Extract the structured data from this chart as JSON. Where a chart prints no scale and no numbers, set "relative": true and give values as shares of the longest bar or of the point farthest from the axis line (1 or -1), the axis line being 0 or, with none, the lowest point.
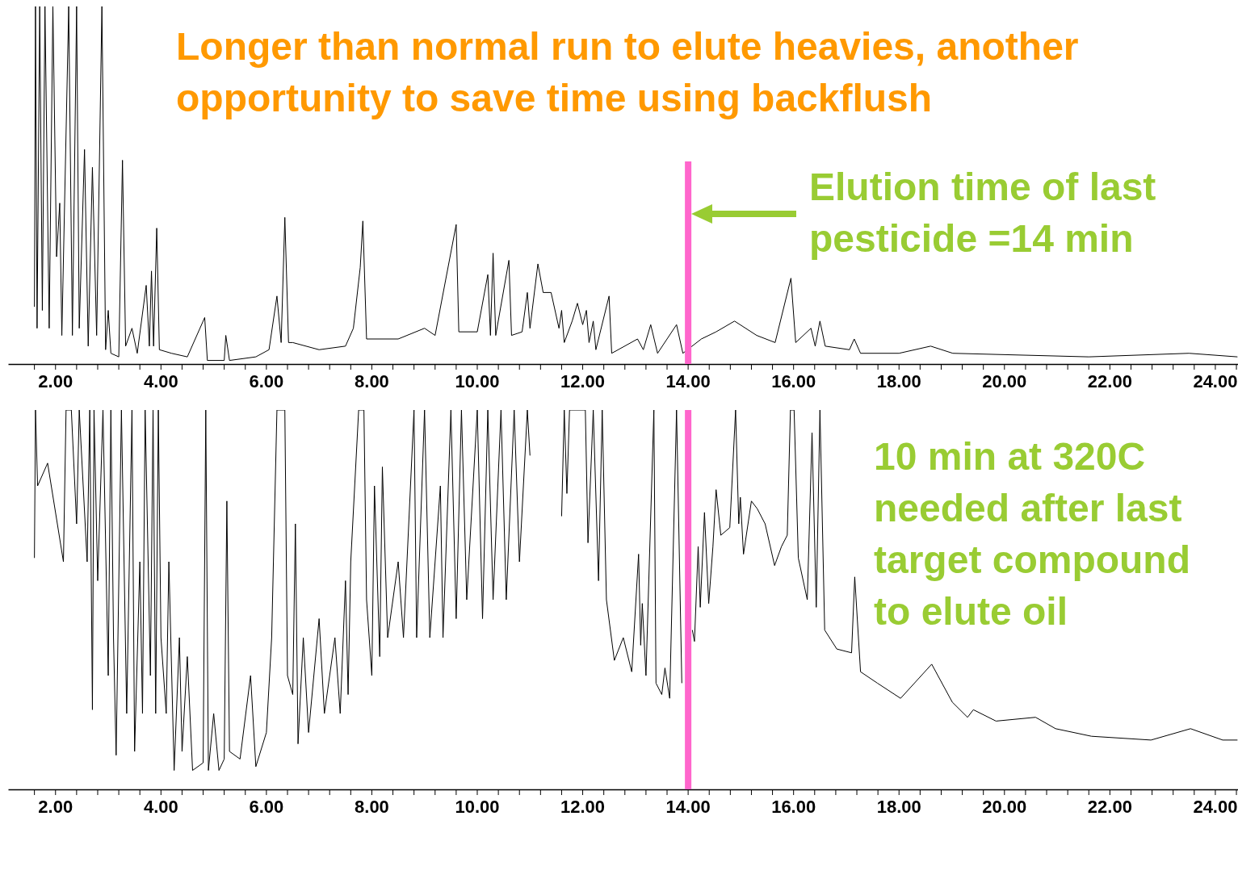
{
  "chart_data": [
    {
      "type": "line",
      "relative": true,
      "annotations": [
        "Longer than normal run to elute heavies, another\nopportunity to save time using backflush",
        "Elution time of last\npesticide =14 min"
      ],
      "xlim": [
        1.1,
        24.43
      ],
      "xticks": [
        {
          "value": 1.6,
          "label": null
        },
        {
          "value": 2,
          "label": "2.00"
        },
        {
          "value": 2.4,
          "label": null
        },
        {
          "value": 2.8,
          "label": null
        },
        {
          "value": 3.2,
          "label": null
        },
        {
          "value": 3.6,
          "label": null
        },
        {
          "value": 4,
          "label": "4.00"
        },
        {
          "value": 4.4,
          "label": null
        },
        {
          "value": 4.8,
          "label": null
        },
        {
          "value": 5.2,
          "label": null
        },
        {
          "value": 5.6,
          "label": null
        },
        {
          "value": 6,
          "label": "6.00"
        },
        {
          "value": 6.4,
          "label": null
        },
        {
          "value": 6.8,
          "label": null
        },
        {
          "value": 7.2,
          "label": null
        },
        {
          "value": 7.6,
          "label": null
        },
        {
          "value": 8,
          "label": "8.00"
        },
        {
          "value": 8.4,
          "label": null
        },
        {
          "value": 8.8,
          "label": null
        },
        {
          "value": 9.2,
          "label": null
        },
        {
          "value": 9.6,
          "label": null
        },
        {
          "value": 10,
          "label": "10.00"
        },
        {
          "value": 10.4,
          "label": null
        },
        {
          "value": 10.8,
          "label": null
        },
        {
          "value": 11.2,
          "label": null
        },
        {
          "value": 11.6,
          "label": null
        },
        {
          "value": 12,
          "label": "12.00"
        },
        {
          "value": 12.4,
          "label": null
        },
        {
          "value": 12.8,
          "label": null
        },
        {
          "value": 13.2,
          "label": null
        },
        {
          "value": 13.6,
          "label": null
        },
        {
          "value": 14,
          "label": "14.00"
        },
        {
          "value": 14.4,
          "label": null
        },
        {
          "value": 14.8,
          "label": null
        },
        {
          "value": 15.2,
          "label": null
        },
        {
          "value": 15.6,
          "label": null
        },
        {
          "value": 16,
          "label": "16.00"
        },
        {
          "value": 16.4,
          "label": null
        },
        {
          "value": 16.8,
          "label": null
        },
        {
          "value": 17.2,
          "label": null
        },
        {
          "value": 17.6,
          "label": null
        },
        {
          "value": 18,
          "label": "18.00"
        },
        {
          "value": 18.4,
          "label": null
        },
        {
          "value": 18.8,
          "label": null
        },
        {
          "value": 19.2,
          "label": null
        },
        {
          "value": 19.6,
          "label": null
        },
        {
          "value": 20,
          "label": "20.00"
        },
        {
          "value": 20.4,
          "label": null
        },
        {
          "value": 20.8,
          "label": null
        },
        {
          "value": 21.2,
          "label": null
        },
        {
          "value": 21.6,
          "label": null
        },
        {
          "value": 22,
          "label": "22.00"
        },
        {
          "value": 22.4,
          "label": null
        },
        {
          "value": 22.8,
          "label": null
        },
        {
          "value": 23.2,
          "label": null
        },
        {
          "value": 23.6,
          "label": null
        },
        {
          "value": 24,
          "label": "24.00"
        },
        {
          "value": 24.4,
          "label": null
        }
      ],
      "ref_lines": [
        {
          "axis": "x",
          "value": 14,
          "color": "#ff66cc"
        }
      ],
      "x": [
        1.6,
        1.62,
        1.65,
        1.7,
        1.75,
        1.8,
        1.88,
        1.95,
        2.02,
        2.08,
        2.12,
        2.25,
        2.32,
        2.4,
        2.45,
        2.55,
        2.62,
        2.7,
        2.78,
        2.88,
        2.95,
        3.0,
        3.05,
        3.2,
        3.27,
        3.33,
        3.45,
        3.55,
        3.72,
        3.78,
        3.82,
        3.86,
        3.92,
        3.97,
        4.2,
        4.5,
        4.83,
        4.88,
        5.2,
        5.23,
        5.3,
        5.8,
        6.05,
        6.2,
        6.28,
        6.35,
        6.42,
        6.5,
        7.0,
        7.5,
        7.65,
        7.78,
        7.83,
        7.9,
        8.5,
        9.0,
        9.2,
        9.6,
        9.65,
        10.0,
        10.2,
        10.25,
        10.3,
        10.35,
        10.6,
        10.65,
        10.85,
        10.95,
        11.0,
        11.15,
        11.25,
        11.4,
        11.55,
        11.6,
        11.65,
        11.8,
        11.9,
        12.0,
        12.07,
        12.12,
        12.2,
        12.25,
        12.5,
        12.55,
        13.04,
        13.15,
        13.29,
        13.42,
        13.78,
        13.9,
        14.25,
        14.53,
        14.88,
        15.3,
        15.65,
        15.95,
        16.04,
        16.33,
        16.41,
        16.5,
        16.6,
        17.06,
        17.15,
        17.27,
        18.0,
        18.6,
        19.02,
        21.6,
        23.5,
        24.42
      ],
      "series": [
        {
          "color": "#000000",
          "values": [
            0.16,
            1,
            0.1,
            1,
            0.15,
            1,
            0.1,
            1,
            0.3,
            0.45,
            0.08,
            1,
            0.08,
            1,
            0.1,
            0.6,
            0.05,
            0.55,
            0.08,
            1,
            0.04,
            0.15,
            0.03,
            0.02,
            0.57,
            0.05,
            0.1,
            0.03,
            0.22,
            0.05,
            0.26,
            0.05,
            0.38,
            0.04,
            0.03,
            0.02,
            0.13,
            0.01,
            0.01,
            0.08,
            0.01,
            0.02,
            0.04,
            0.19,
            0.06,
            0.41,
            0.06,
            0.06,
            0.04,
            0.05,
            0.1,
            0.27,
            0.4,
            0.07,
            0.07,
            0.1,
            0.08,
            0.39,
            0.09,
            0.09,
            0.25,
            0.08,
            0.31,
            0.08,
            0.29,
            0.08,
            0.09,
            0.2,
            0.1,
            0.28,
            0.2,
            0.2,
            0.1,
            0.15,
            0.06,
            0.12,
            0.17,
            0.11,
            0.15,
            0.06,
            0.12,
            0.04,
            0.19,
            0.03,
            0.07,
            0.04,
            0.11,
            0.03,
            0.11,
            0.03,
            0.07,
            0.09,
            0.12,
            0.08,
            0.06,
            0.24,
            0.06,
            0.1,
            0.05,
            0.12,
            0.05,
            0.04,
            0.07,
            0.03,
            0.03,
            0.05,
            0.03,
            0.02,
            0.03,
            0.02
          ]
        }
      ]
    },
    {
      "type": "line",
      "relative": true,
      "annotations": [
        "10 min at 320C\nneeded after last\ntarget compound\nto elute oil"
      ],
      "xlim": [
        1.1,
        24.43
      ],
      "xticks": [
        {
          "value": 1.6,
          "label": null
        },
        {
          "value": 2,
          "label": "2.00"
        },
        {
          "value": 2.4,
          "label": null
        },
        {
          "value": 2.8,
          "label": null
        },
        {
          "value": 3.2,
          "label": null
        },
        {
          "value": 3.6,
          "label": null
        },
        {
          "value": 4,
          "label": "4.00"
        },
        {
          "value": 4.4,
          "label": null
        },
        {
          "value": 4.8,
          "label": null
        },
        {
          "value": 5.2,
          "label": null
        },
        {
          "value": 5.6,
          "label": null
        },
        {
          "value": 6,
          "label": "6.00"
        },
        {
          "value": 6.4,
          "label": null
        },
        {
          "value": 6.8,
          "label": null
        },
        {
          "value": 7.2,
          "label": null
        },
        {
          "value": 7.6,
          "label": null
        },
        {
          "value": 8,
          "label": "8.00"
        },
        {
          "value": 8.4,
          "label": null
        },
        {
          "value": 8.8,
          "label": null
        },
        {
          "value": 9.2,
          "label": null
        },
        {
          "value": 9.6,
          "label": null
        },
        {
          "value": 10,
          "label": "10.00"
        },
        {
          "value": 10.4,
          "label": null
        },
        {
          "value": 10.8,
          "label": null
        },
        {
          "value": 11.2,
          "label": null
        },
        {
          "value": 11.6,
          "label": null
        },
        {
          "value": 12,
          "label": "12.00"
        },
        {
          "value": 12.4,
          "label": null
        },
        {
          "value": 12.8,
          "label": null
        },
        {
          "value": 13.2,
          "label": null
        },
        {
          "value": 13.6,
          "label": null
        },
        {
          "value": 14,
          "label": "14.00"
        },
        {
          "value": 14.4,
          "label": null
        },
        {
          "value": 14.8,
          "label": null
        },
        {
          "value": 15.2,
          "label": null
        },
        {
          "value": 15.6,
          "label": null
        },
        {
          "value": 16,
          "label": "16.00"
        },
        {
          "value": 16.4,
          "label": null
        },
        {
          "value": 16.8,
          "label": null
        },
        {
          "value": 17.2,
          "label": null
        },
        {
          "value": 17.6,
          "label": null
        },
        {
          "value": 18,
          "label": "18.00"
        },
        {
          "value": 18.4,
          "label": null
        },
        {
          "value": 18.8,
          "label": null
        },
        {
          "value": 19.2,
          "label": null
        },
        {
          "value": 19.6,
          "label": null
        },
        {
          "value": 20,
          "label": "20.00"
        },
        {
          "value": 20.4,
          "label": null
        },
        {
          "value": 20.8,
          "label": null
        },
        {
          "value": 21.2,
          "label": null
        },
        {
          "value": 21.6,
          "label": null
        },
        {
          "value": 22,
          "label": "22.00"
        },
        {
          "value": 22.4,
          "label": null
        },
        {
          "value": 22.8,
          "label": null
        },
        {
          "value": 23.2,
          "label": null
        },
        {
          "value": 23.6,
          "label": null
        },
        {
          "value": 24,
          "label": "24.00"
        },
        {
          "value": 24.4,
          "label": null
        }
      ],
      "ref_lines": [
        {
          "axis": "x",
          "value": 14,
          "color": "#ff66cc"
        }
      ],
      "x": [
        1.6,
        1.62,
        1.66,
        1.85,
        2.15,
        2.2,
        2.3,
        2.4,
        2.45,
        2.6,
        2.65,
        2.7,
        2.73,
        2.8,
        2.9,
        3.0,
        3.05,
        3.1,
        3.15,
        3.25,
        3.35,
        3.45,
        3.5,
        3.6,
        3.65,
        3.7,
        3.8,
        3.85,
        3.9,
        3.95,
        4.0,
        4.1,
        4.15,
        4.25,
        4.35,
        4.4,
        4.5,
        4.6,
        4.8,
        4.85,
        4.9,
        5.0,
        5.1,
        5.2,
        5.25,
        5.3,
        5.5,
        5.7,
        5.8,
        6.0,
        6.1,
        6.2,
        6.35,
        6.4,
        6.5,
        6.55,
        6.6,
        6.7,
        6.8,
        7.0,
        7.1,
        7.3,
        7.4,
        7.5,
        7.55,
        7.6,
        7.75,
        7.85,
        7.9,
        8.0,
        8.05,
        8.15,
        8.2,
        8.3,
        8.5,
        8.6,
        8.8,
        8.85,
        9.0,
        9.1,
        9.3,
        9.35,
        9.5,
        9.6,
        9.7,
        9.8,
        10.0,
        10.1,
        10.2,
        10.3,
        10.45,
        10.55,
        10.7,
        10.8,
        10.95,
        11.0,
        11.3,
        11.6,
        11.65,
        11.7,
        11.75,
        12.05,
        12.1,
        12.2,
        12.3,
        12.37,
        12.45,
        12.6,
        12.77,
        12.93,
        13.06,
        13.1,
        13.13,
        13.2,
        13.35,
        13.39,
        13.5,
        13.56,
        13.65,
        13.78,
        13.88,
        13.95,
        13.99,
        14.08,
        14.12,
        14.19,
        14.23,
        14.31,
        14.39,
        14.47,
        14.53,
        14.62,
        14.79,
        14.9,
        14.96,
        14.99,
        15.05,
        15.2,
        15.31,
        15.46,
        15.64,
        15.77,
        15.88,
        15.94,
        16.01,
        16.09,
        16.26,
        16.35,
        16.43,
        16.5,
        16.59,
        16.82,
        17.1,
        17.16,
        17.27,
        17.59,
        18.03,
        18.62,
        19.01,
        19.3,
        19.41,
        19.84,
        20.59,
        20.97,
        21.65,
        22.78,
        23.53,
        24.14,
        24.42
      ],
      "series": [
        {
          "color": "#000000",
          "values": [
            0.61,
            1,
            0.8,
            0.86,
            0.6,
            1,
            1,
            0.7,
            1,
            0.6,
            1,
            0.21,
            1,
            0.55,
            1,
            0.3,
            1,
            0.4,
            0.09,
            1,
            0.2,
            1,
            0.1,
            0.6,
            0.2,
            1,
            0.3,
            1,
            0.2,
            1,
            0.4,
            0.2,
            0.6,
            0.05,
            0.4,
            0.1,
            0.35,
            0.05,
            0.07,
            1,
            0.05,
            0.2,
            0.05,
            0.08,
            0.76,
            0.1,
            0.08,
            0.3,
            0.06,
            0.15,
            0.4,
            1,
            1,
            0.3,
            0.25,
            0.7,
            0.12,
            0.4,
            0.15,
            0.45,
            0.2,
            0.4,
            0.2,
            0.55,
            0.25,
            0.6,
            1,
            1,
            0.5,
            0.3,
            0.8,
            0.35,
            0.85,
            0.4,
            0.6,
            0.4,
            1,
            0.4,
            1,
            0.4,
            0.8,
            0.4,
            1,
            0.45,
            1,
            0.5,
            1,
            0.45,
            1,
            0.5,
            1,
            0.5,
            1,
            0.6,
            1,
            0.88,
            null,
            0.72,
            1,
            0.78,
            1,
            1,
            0.65,
            1,
            0.55,
            1,
            0.5,
            0.34,
            0.4,
            0.31,
            0.62,
            0.38,
            0.49,
            0.3,
            1,
            0.28,
            0.25,
            0.32,
            0.24,
            1,
            0.28,
            null,
            null,
            0.42,
            0.39,
            0.64,
            0.48,
            0.73,
            0.49,
            0.64,
            0.79,
            0.67,
            0.69,
            1,
            0.7,
            0.77,
            0.62,
            0.76,
            0.74,
            0.7,
            0.59,
            0.64,
            0.67,
            1,
            1,
            0.61,
            0.5,
            0.94,
            0.48,
            1,
            0.42,
            0.37,
            0.36,
            0.56,
            0.31,
            0.28,
            0.24,
            0.33,
            0.23,
            0.19,
            0.21,
            0.18,
            0.19,
            0.16,
            0.14,
            0.13,
            0.16,
            0.13,
            0.13
          ]
        }
      ]
    }
  ]
}
